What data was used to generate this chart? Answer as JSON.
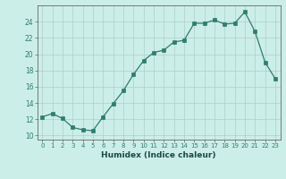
{
  "x": [
    0,
    1,
    2,
    3,
    4,
    5,
    6,
    7,
    8,
    9,
    10,
    11,
    12,
    13,
    14,
    15,
    16,
    17,
    18,
    19,
    20,
    21,
    22,
    23
  ],
  "y": [
    12.3,
    12.7,
    12.1,
    11.0,
    10.7,
    10.6,
    12.3,
    13.9,
    15.5,
    17.5,
    19.2,
    20.2,
    20.5,
    21.5,
    21.7,
    23.8,
    23.8,
    24.2,
    23.7,
    23.8,
    25.2,
    22.8,
    19.0,
    17.0
  ],
  "xlabel": "Humidex (Indice chaleur)",
  "ylabel": "",
  "xlim": [
    -0.5,
    23.5
  ],
  "ylim": [
    9.5,
    26.0
  ],
  "yticks": [
    10,
    12,
    14,
    16,
    18,
    20,
    22,
    24
  ],
  "xticks": [
    0,
    1,
    2,
    3,
    4,
    5,
    6,
    7,
    8,
    9,
    10,
    11,
    12,
    13,
    14,
    15,
    16,
    17,
    18,
    19,
    20,
    21,
    22,
    23
  ],
  "line_color": "#2e7d6d",
  "marker_color": "#2e7d6d",
  "bg_color": "#cceee8",
  "grid_color_major": "#b0cdc8",
  "grid_color_minor": "#c4e0dc",
  "spine_color": "#666666",
  "font_color": "#2e7d6d",
  "xlabel_color": "#1a4a42",
  "tick_label_color": "#2e7d6d"
}
